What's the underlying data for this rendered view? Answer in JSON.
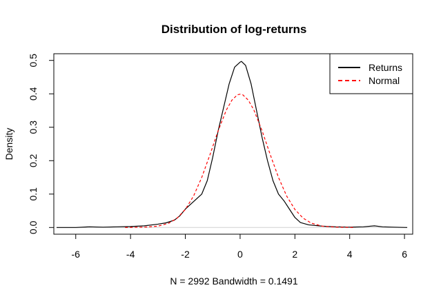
{
  "chart_data": {
    "type": "line",
    "title": "Distribution of log-returns",
    "xlabel": "N = 2992   Bandwidth = 0.1491",
    "ylabel": "Density",
    "xlim": [
      -6.8,
      6.3
    ],
    "ylim": [
      -0.02,
      0.52
    ],
    "x_ticks": [
      -6,
      -4,
      -2,
      0,
      2,
      4,
      6
    ],
    "x_tick_labels": [
      "-6",
      "-4",
      "-2",
      "0",
      "2",
      "4",
      "6"
    ],
    "y_ticks": [
      0.0,
      0.1,
      0.2,
      0.3,
      0.4,
      0.5
    ],
    "y_tick_labels": [
      "0.0",
      "0.1",
      "0.2",
      "0.3",
      "0.4",
      "0.5"
    ],
    "grid": false,
    "legend_position": "top-right",
    "series": [
      {
        "name": "Returns",
        "style": "solid",
        "color": "#000000",
        "x": [
          -6.7,
          -6.0,
          -5.5,
          -5.0,
          -4.5,
          -4.0,
          -3.5,
          -3.0,
          -2.7,
          -2.4,
          -2.2,
          -2.0,
          -1.8,
          -1.6,
          -1.4,
          -1.2,
          -1.0,
          -0.8,
          -0.6,
          -0.4,
          -0.2,
          0.0,
          0.05,
          0.2,
          0.4,
          0.6,
          0.8,
          1.0,
          1.2,
          1.4,
          1.6,
          1.8,
          2.0,
          2.2,
          2.5,
          3.0,
          3.5,
          4.0,
          4.5,
          4.9,
          5.2,
          5.6,
          6.1
        ],
        "y": [
          0.0,
          0.0,
          0.002,
          0.001,
          0.002,
          0.003,
          0.005,
          0.01,
          0.014,
          0.022,
          0.035,
          0.055,
          0.07,
          0.085,
          0.1,
          0.14,
          0.21,
          0.29,
          0.36,
          0.43,
          0.48,
          0.495,
          0.497,
          0.485,
          0.43,
          0.35,
          0.27,
          0.2,
          0.14,
          0.1,
          0.08,
          0.055,
          0.03,
          0.015,
          0.008,
          0.004,
          0.002,
          0.001,
          0.002,
          0.005,
          0.002,
          0.001,
          0.0
        ]
      },
      {
        "name": "Normal",
        "style": "dashed",
        "color": "#ff0000",
        "x": [
          -4.2,
          -3.5,
          -3.0,
          -2.6,
          -2.3,
          -2.0,
          -1.7,
          -1.4,
          -1.1,
          -0.8,
          -0.5,
          -0.3,
          -0.1,
          0.0,
          0.1,
          0.3,
          0.5,
          0.8,
          1.1,
          1.4,
          1.7,
          2.0,
          2.3,
          2.6,
          3.0,
          3.5,
          4.2
        ],
        "y": [
          0.0,
          0.001,
          0.004,
          0.013,
          0.028,
          0.054,
          0.094,
          0.15,
          0.218,
          0.29,
          0.352,
          0.381,
          0.397,
          0.399,
          0.397,
          0.381,
          0.352,
          0.29,
          0.218,
          0.15,
          0.094,
          0.054,
          0.028,
          0.013,
          0.004,
          0.001,
          0.0
        ]
      }
    ]
  }
}
